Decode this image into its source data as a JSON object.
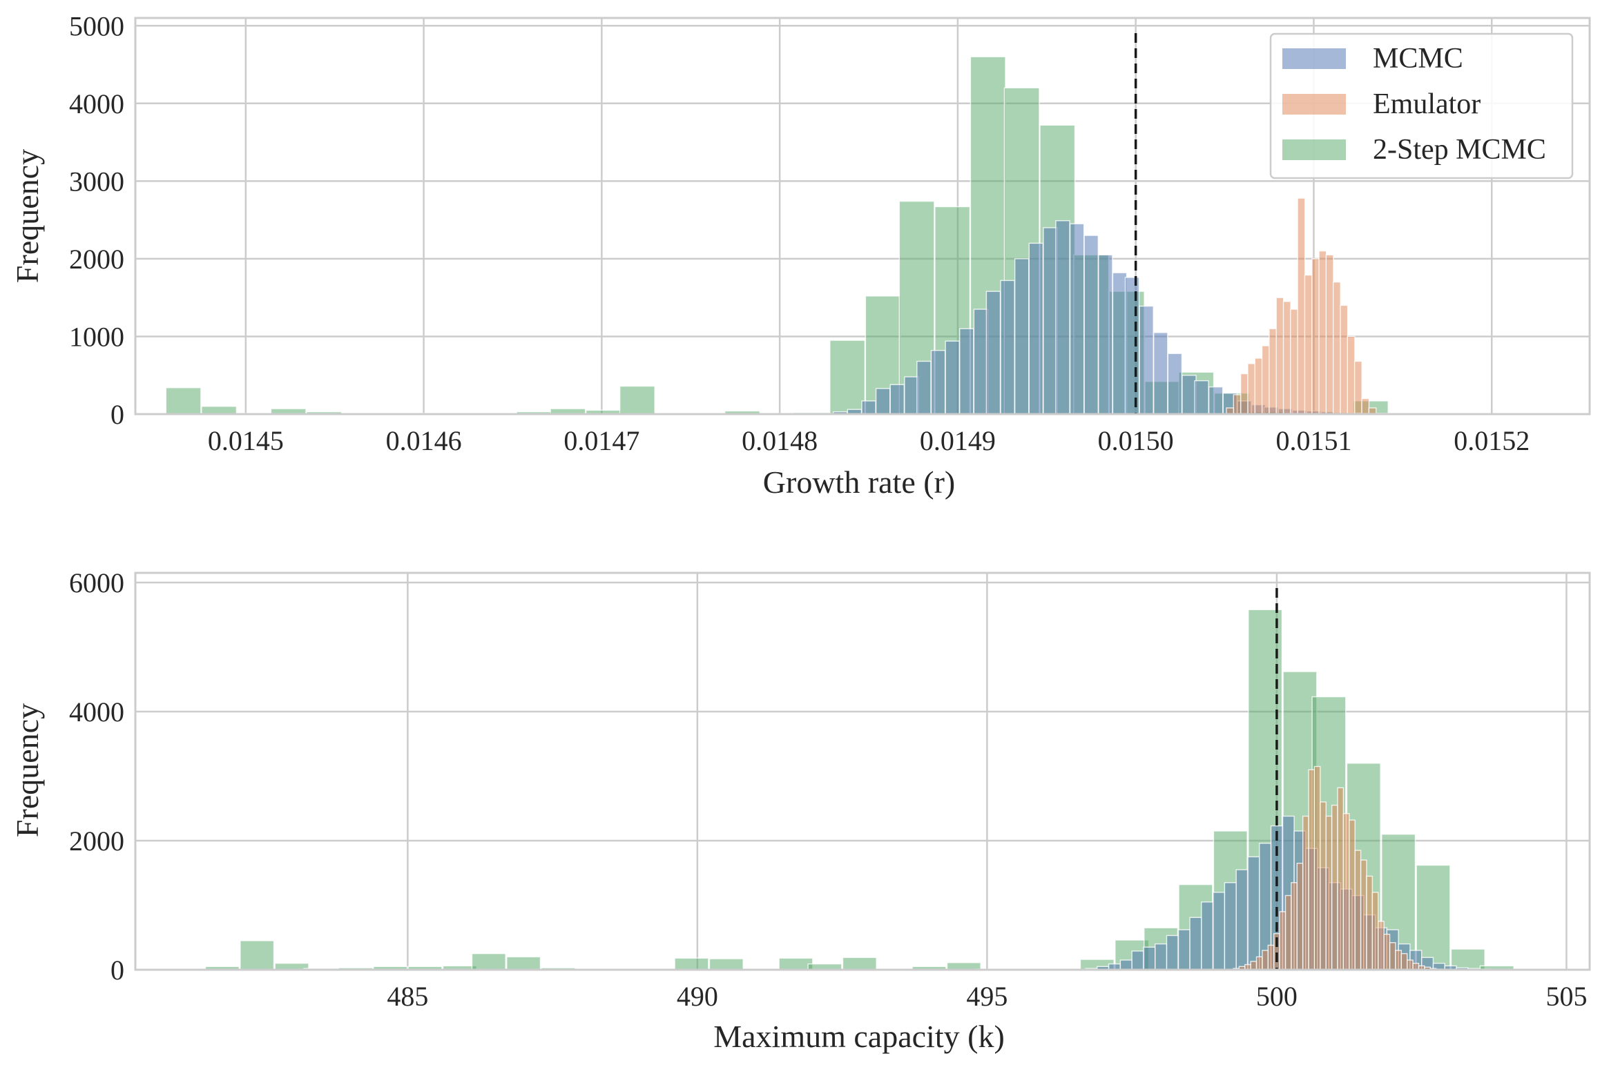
{
  "colors": {
    "mcmc": "#4c72b0",
    "emulator": "#dd8452",
    "two_step": "#55a868"
  },
  "legend": {
    "items": [
      {
        "label": "MCMC",
        "series": "mcmc"
      },
      {
        "label": "Emulator",
        "series": "emulator"
      },
      {
        "label": "2-Step MCMC",
        "series": "two_step"
      }
    ]
  },
  "chart_data": [
    {
      "type": "bar",
      "subtype": "histogram-overlay",
      "xlabel": "Growth rate (r)",
      "ylabel": "Frequency",
      "xlim": [
        0.014438,
        0.015255
      ],
      "ylim": [
        0,
        5100
      ],
      "xticks": [
        0.0145,
        0.0146,
        0.0147,
        0.0148,
        0.0149,
        0.015,
        0.0151,
        0.0152
      ],
      "xtick_labels": [
        "0.0145",
        "0.0146",
        "0.0147",
        "0.0148",
        "0.0149",
        "0.0150",
        "0.0151",
        "0.0152"
      ],
      "yticks": [
        0,
        1000,
        2000,
        3000,
        4000,
        5000
      ],
      "ytick_labels": [
        "0",
        "1000",
        "2000",
        "3000",
        "4000",
        "5000"
      ],
      "reference_line_x": 0.015,
      "legend_position": "top-right",
      "series": [
        {
          "name": "MCMC",
          "key": "mcmc",
          "bin_width": 7.8e-06,
          "centers": [
            0.014834,
            0.014842,
            0.01485,
            0.014858,
            0.014866,
            0.014874,
            0.014881,
            0.014889,
            0.014897,
            0.014905,
            0.014913,
            0.01492,
            0.014928,
            0.014936,
            0.014944,
            0.014952,
            0.014959,
            0.014967,
            0.014975,
            0.014983,
            0.014991,
            0.014998,
            0.015006,
            0.015014,
            0.015022,
            0.01503,
            0.015037,
            0.015045,
            0.015053,
            0.015061,
            0.015069,
            0.015076,
            0.015084,
            0.015092,
            0.0151,
            0.015108,
            0.015115,
            0.015123,
            0.015131,
            0.015139,
            0.015147,
            0.015154
          ],
          "values": [
            30,
            60,
            170,
            330,
            380,
            480,
            680,
            820,
            940,
            1100,
            1350,
            1580,
            1720,
            2000,
            2200,
            2400,
            2490,
            2450,
            2300,
            2050,
            1820,
            1760,
            1390,
            1050,
            780,
            500,
            430,
            350,
            270,
            170,
            120,
            90,
            70,
            50,
            40,
            30,
            20,
            15,
            10,
            10,
            5,
            5
          ]
        },
        {
          "name": "Emulator",
          "key": "emulator",
          "bin_width": 4.1e-06,
          "centers": [
            0.015053,
            0.015057,
            0.015061,
            0.015065,
            0.015069,
            0.015073,
            0.015077,
            0.015081,
            0.015085,
            0.015089,
            0.015093,
            0.015097,
            0.015101,
            0.015105,
            0.015109,
            0.015113,
            0.015117,
            0.015121,
            0.015125,
            0.015129,
            0.015133
          ],
          "values": [
            80,
            250,
            520,
            650,
            720,
            880,
            1100,
            1500,
            1450,
            1350,
            2780,
            1790,
            2000,
            2100,
            2050,
            1700,
            1400,
            1000,
            680,
            200,
            80
          ]
        },
        {
          "name": "2-Step MCMC",
          "key": "two_step",
          "bin_width": 1.96e-05,
          "centers": [
            0.014465,
            0.014485,
            0.014505,
            0.014524,
            0.014544,
            0.014564,
            0.014583,
            0.014603,
            0.014622,
            0.014642,
            0.014662,
            0.014681,
            0.014701,
            0.01472,
            0.01474,
            0.01476,
            0.014779,
            0.014799,
            0.014818,
            0.014838,
            0.014858,
            0.014877,
            0.014897,
            0.014917,
            0.014936,
            0.014956,
            0.014975,
            0.014995,
            0.015015,
            0.015034,
            0.015054,
            0.015073,
            0.015093,
            0.015113,
            0.015132
          ],
          "values": [
            340,
            100,
            10,
            70,
            30,
            10,
            10,
            10,
            10,
            10,
            30,
            70,
            50,
            360,
            10,
            10,
            40,
            10,
            20,
            950,
            1520,
            2740,
            2670,
            4600,
            4200,
            3720,
            2050,
            1580,
            420,
            540,
            270,
            30,
            10,
            10,
            170
          ]
        }
      ]
    },
    {
      "type": "bar",
      "subtype": "histogram-overlay",
      "xlabel": "Maximum capacity (k)",
      "ylabel": "Frequency",
      "xlim": [
        480.3,
        505.4
      ],
      "ylim": [
        0,
        6150
      ],
      "xticks": [
        485,
        490,
        495,
        500,
        505
      ],
      "xtick_labels": [
        "485",
        "490",
        "495",
        "500",
        "505"
      ],
      "yticks": [
        0,
        2000,
        4000,
        6000
      ],
      "ytick_labels": [
        "0",
        "2000",
        "4000",
        "6000"
      ],
      "reference_line_x": 500,
      "series": [
        {
          "name": "MCMC",
          "key": "mcmc",
          "bin_width": 0.2,
          "centers": [
            496.8,
            497.0,
            497.2,
            497.4,
            497.6,
            497.8,
            498.0,
            498.2,
            498.4,
            498.6,
            498.8,
            499.0,
            499.2,
            499.4,
            499.6,
            499.8,
            500.0,
            500.2,
            500.4,
            500.6,
            500.8,
            501.0,
            501.2,
            501.4,
            501.6,
            501.8,
            502.0,
            502.2,
            502.4,
            502.6,
            502.8,
            503.0,
            503.2,
            503.4,
            503.6,
            503.8,
            504.0
          ],
          "values": [
            20,
            50,
            90,
            150,
            290,
            350,
            400,
            530,
            620,
            810,
            1050,
            1200,
            1350,
            1550,
            1750,
            1960,
            2230,
            2380,
            2150,
            1880,
            1580,
            1350,
            1250,
            1150,
            850,
            650,
            620,
            400,
            300,
            190,
            100,
            60,
            30,
            20,
            10,
            5,
            5
          ]
        },
        {
          "name": "Emulator",
          "key": "emulator",
          "bin_width": 0.1,
          "centers": [
            499.3,
            499.4,
            499.5,
            499.6,
            499.7,
            499.8,
            499.9,
            500.0,
            500.1,
            500.2,
            500.3,
            500.4,
            500.5,
            500.6,
            500.7,
            500.8,
            500.9,
            501.0,
            501.1,
            501.2,
            501.3,
            501.4,
            501.5,
            501.6,
            501.7,
            501.8,
            501.9,
            502.0,
            502.1,
            502.2,
            502.3,
            502.4,
            502.5,
            502.6,
            502.7,
            502.8
          ],
          "values": [
            20,
            50,
            80,
            130,
            200,
            300,
            380,
            560,
            900,
            1150,
            1350,
            1650,
            2380,
            3100,
            3150,
            2600,
            2380,
            2550,
            2820,
            2420,
            2320,
            1850,
            1700,
            1450,
            1200,
            750,
            550,
            420,
            300,
            250,
            150,
            100,
            60,
            40,
            20,
            10
          ]
        },
        {
          "name": "2-Step MCMC",
          "key": "two_step",
          "bin_width": 0.58,
          "centers": [
            481.2,
            481.8,
            482.4,
            483.0,
            483.5,
            484.1,
            484.7,
            485.3,
            485.9,
            486.4,
            487.0,
            487.6,
            488.2,
            488.8,
            489.3,
            489.9,
            490.5,
            491.1,
            491.7,
            492.2,
            492.8,
            493.4,
            494.0,
            494.6,
            495.1,
            495.7,
            496.3,
            496.9,
            497.5,
            498.0,
            498.6,
            499.2,
            499.8,
            500.4,
            500.9,
            501.5,
            502.1,
            502.7,
            503.3,
            503.8
          ],
          "values": [
            10,
            50,
            450,
            100,
            20,
            30,
            50,
            50,
            60,
            250,
            200,
            30,
            10,
            10,
            10,
            180,
            170,
            10,
            180,
            90,
            190,
            10,
            50,
            110,
            10,
            10,
            10,
            160,
            460,
            650,
            1320,
            2150,
            5580,
            4620,
            4230,
            3200,
            2100,
            1620,
            320,
            60
          ]
        }
      ]
    }
  ]
}
